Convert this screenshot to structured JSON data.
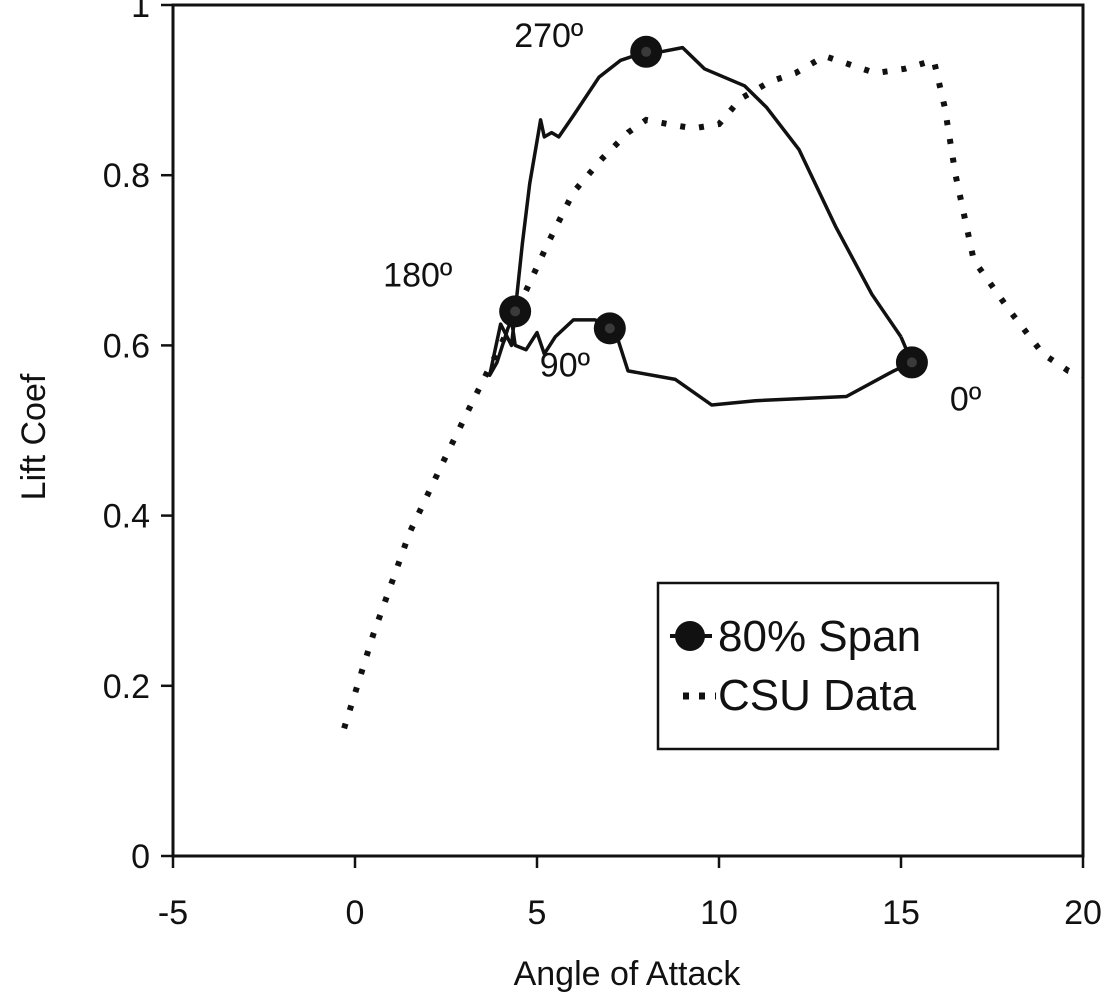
{
  "chart_data": {
    "type": "line",
    "title": "",
    "xlabel": "Angle of Attack",
    "ylabel": "Lift Coef",
    "xlim": [
      -5,
      20
    ],
    "ylim": [
      0,
      1
    ],
    "x_ticks": [
      -5,
      0,
      5,
      10,
      15,
      20
    ],
    "y_ticks": [
      0,
      0.2,
      0.4,
      0.6,
      0.8,
      1
    ],
    "x_tick_labels": [
      "-5",
      "0",
      "5",
      "10",
      "15",
      "20"
    ],
    "y_tick_labels": [
      "0",
      "0.2",
      "0.4",
      "0.6",
      "0.8",
      "1"
    ],
    "grid": false,
    "legend": {
      "position": "lower-right",
      "entries": [
        "80% Span",
        "CSU Data"
      ]
    },
    "series": [
      {
        "name": "80% Span",
        "style": "solid-with-markers",
        "color": "#111111",
        "points": [
          [
            15.0,
            0.61
          ],
          [
            15.3,
            0.58
          ],
          [
            14.8,
            0.57
          ],
          [
            13.5,
            0.54
          ],
          [
            11.0,
            0.535
          ],
          [
            9.8,
            0.53
          ],
          [
            8.8,
            0.56
          ],
          [
            7.5,
            0.57
          ],
          [
            7.2,
            0.61
          ],
          [
            7.0,
            0.62
          ],
          [
            6.6,
            0.63
          ],
          [
            6.0,
            0.63
          ],
          [
            5.5,
            0.61
          ],
          [
            5.2,
            0.59
          ],
          [
            5.0,
            0.615
          ],
          [
            4.7,
            0.595
          ],
          [
            4.4,
            0.6
          ],
          [
            4.3,
            0.63
          ],
          [
            4.2,
            0.62
          ],
          [
            3.9,
            0.58
          ],
          [
            3.7,
            0.565
          ],
          [
            4.0,
            0.625
          ],
          [
            4.3,
            0.6
          ],
          [
            4.4,
            0.64
          ],
          [
            4.6,
            0.72
          ],
          [
            4.8,
            0.79
          ],
          [
            5.0,
            0.84
          ],
          [
            5.1,
            0.865
          ],
          [
            5.2,
            0.845
          ],
          [
            5.4,
            0.85
          ],
          [
            5.6,
            0.845
          ],
          [
            6.0,
            0.87
          ],
          [
            6.7,
            0.915
          ],
          [
            7.3,
            0.935
          ],
          [
            8.0,
            0.945
          ],
          [
            8.4,
            0.945
          ],
          [
            9.0,
            0.95
          ],
          [
            9.6,
            0.925
          ],
          [
            10.7,
            0.905
          ],
          [
            11.3,
            0.88
          ],
          [
            12.2,
            0.83
          ],
          [
            13.2,
            0.74
          ],
          [
            14.2,
            0.66
          ],
          [
            15.0,
            0.61
          ]
        ],
        "markers": [
          {
            "x": 15.3,
            "y": 0.58,
            "label": "0º"
          },
          {
            "x": 7.0,
            "y": 0.62,
            "label": "90º"
          },
          {
            "x": 4.4,
            "y": 0.64,
            "label": "180º"
          },
          {
            "x": 8.0,
            "y": 0.945,
            "label": "270º"
          }
        ]
      },
      {
        "name": "CSU Data",
        "style": "dotted",
        "color": "#111111",
        "points": [
          [
            -0.3,
            0.15
          ],
          [
            0.5,
            0.26
          ],
          [
            1.5,
            0.38
          ],
          [
            2.5,
            0.47
          ],
          [
            3.3,
            0.54
          ],
          [
            4.0,
            0.6
          ],
          [
            4.6,
            0.655
          ],
          [
            5.3,
            0.72
          ],
          [
            6.0,
            0.78
          ],
          [
            6.8,
            0.82
          ],
          [
            7.5,
            0.85
          ],
          [
            8.0,
            0.865
          ],
          [
            8.6,
            0.86
          ],
          [
            9.3,
            0.855
          ],
          [
            10.0,
            0.86
          ],
          [
            10.6,
            0.89
          ],
          [
            11.4,
            0.91
          ],
          [
            12.1,
            0.92
          ],
          [
            12.9,
            0.94
          ],
          [
            13.6,
            0.93
          ],
          [
            14.3,
            0.92
          ],
          [
            15.1,
            0.925
          ],
          [
            15.9,
            0.935
          ],
          [
            16.2,
            0.88
          ],
          [
            16.5,
            0.8
          ],
          [
            17.0,
            0.7
          ],
          [
            18.0,
            0.64
          ],
          [
            18.9,
            0.59
          ],
          [
            19.6,
            0.57
          ],
          [
            20.0,
            0.565
          ]
        ]
      }
    ]
  }
}
